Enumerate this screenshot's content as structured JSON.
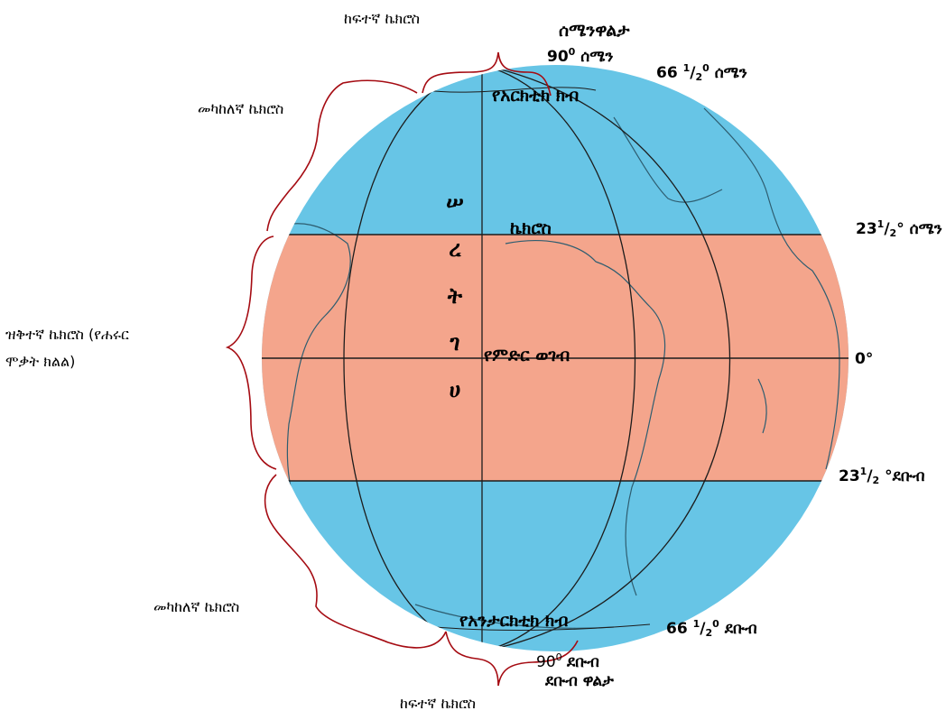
{
  "colors": {
    "ocean": "#67c5e6",
    "torrid_zone": "#f4a58c",
    "land_outline": "#2e5d70",
    "brace": "#a50b12",
    "grid_line": "#1c1c1c"
  },
  "labels": {
    "north_pole": "ሰሜንዋልታ",
    "north_pole_deg": "90",
    "north_pole_dir": "ሰሜን",
    "frigid_top": "ከፍተኛ ኬክሮስ",
    "arctic_circle": "የአርክቲክ ክብ",
    "arctic_deg_whole": "66",
    "arctic_deg_num": "1",
    "arctic_deg_den": "2",
    "arctic_dir": "ሰሜን",
    "temperate_top": "መካከለኛ ኬክሮስ",
    "tropic_north_name": "ኬክሮስ",
    "tropic_north_whole": "23",
    "tropic_north_num": "1",
    "tropic_north_den": "2",
    "tropic_north_dir": "ሰሜን",
    "torrid_line1": "ዝቅተኛ ኬክሮስ (የሐሩር",
    "torrid_line2": "ሞቃት ክልል)",
    "equator": "የምድር ወገብ",
    "equator_deg": "0°",
    "vertical_chars": [
      "ሠ",
      "ረ",
      "ት",
      "ገ",
      "ሀ"
    ],
    "tropic_south_whole": "23",
    "tropic_south_num": "1",
    "tropic_south_den": "2",
    "tropic_south_dir": "°ደቡብ",
    "temperate_bottom": "መካከለኛ ኬክሮስ",
    "antarctic_circle": "የአንታርክቲክ ክብ",
    "antarctic_deg_whole": "66",
    "antarctic_deg_num": "1",
    "antarctic_deg_den": "2",
    "antarctic_dir": "ደቡብ",
    "south_pole_deg": "90",
    "south_pole_dir": "ደቡብ",
    "south_pole": "ደቡብ ዋልታ",
    "frigid_bottom": "ከፍተኛ ኬክሮስ"
  }
}
